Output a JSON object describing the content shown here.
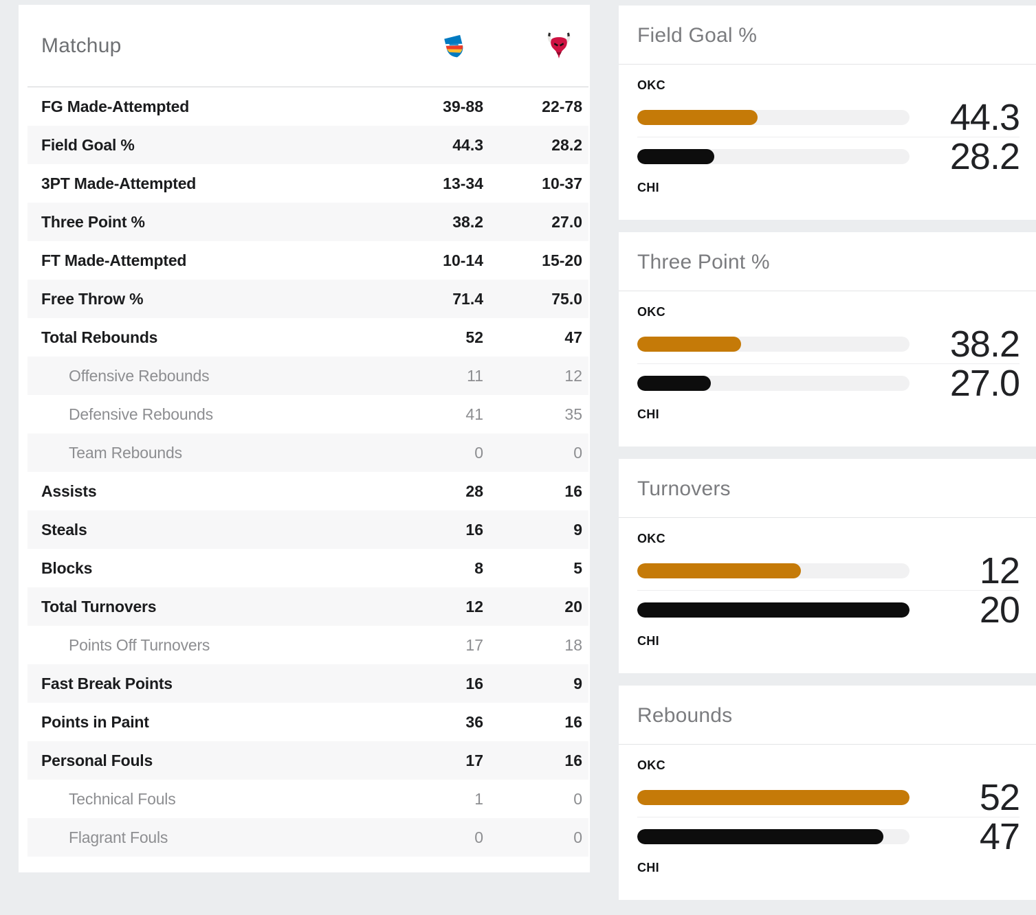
{
  "teams": {
    "away_abbr": "OKC",
    "home_abbr": "CHI",
    "away_logo_icon": "okc-thunder-logo",
    "home_logo_icon": "chicago-bulls-logo"
  },
  "matchup": {
    "title": "Matchup",
    "rows": [
      {
        "label": "FG Made-Attempted",
        "okc": "39-88",
        "chi": "22-78",
        "sub": false
      },
      {
        "label": "Field Goal %",
        "okc": "44.3",
        "chi": "28.2",
        "sub": false
      },
      {
        "label": "3PT Made-Attempted",
        "okc": "13-34",
        "chi": "10-37",
        "sub": false
      },
      {
        "label": "Three Point %",
        "okc": "38.2",
        "chi": "27.0",
        "sub": false
      },
      {
        "label": "FT Made-Attempted",
        "okc": "10-14",
        "chi": "15-20",
        "sub": false
      },
      {
        "label": "Free Throw %",
        "okc": "71.4",
        "chi": "75.0",
        "sub": false
      },
      {
        "label": "Total Rebounds",
        "okc": "52",
        "chi": "47",
        "sub": false
      },
      {
        "label": "Offensive Rebounds",
        "okc": "11",
        "chi": "12",
        "sub": true
      },
      {
        "label": "Defensive Rebounds",
        "okc": "41",
        "chi": "35",
        "sub": true
      },
      {
        "label": "Team Rebounds",
        "okc": "0",
        "chi": "0",
        "sub": true
      },
      {
        "label": "Assists",
        "okc": "28",
        "chi": "16",
        "sub": false
      },
      {
        "label": "Steals",
        "okc": "16",
        "chi": "9",
        "sub": false
      },
      {
        "label": "Blocks",
        "okc": "8",
        "chi": "5",
        "sub": false
      },
      {
        "label": "Total Turnovers",
        "okc": "12",
        "chi": "20",
        "sub": false
      },
      {
        "label": "Points Off Turnovers",
        "okc": "17",
        "chi": "18",
        "sub": true
      },
      {
        "label": "Fast Break Points",
        "okc": "16",
        "chi": "9",
        "sub": false
      },
      {
        "label": "Points in Paint",
        "okc": "36",
        "chi": "16",
        "sub": false
      },
      {
        "label": "Personal Fouls",
        "okc": "17",
        "chi": "16",
        "sub": false
      },
      {
        "label": "Technical Fouls",
        "okc": "1",
        "chi": "0",
        "sub": true
      },
      {
        "label": "Flagrant Fouls",
        "okc": "0",
        "chi": "0",
        "sub": true
      }
    ]
  },
  "panels": [
    {
      "type": "bar",
      "title": "Field Goal %",
      "away_value": "44.3",
      "home_value": "28.2",
      "away_fill_pct": 44.3,
      "home_fill_pct": 28.2
    },
    {
      "type": "bar",
      "title": "Three Point %",
      "away_value": "38.2",
      "home_value": "27.0",
      "away_fill_pct": 38.2,
      "home_fill_pct": 27.0
    },
    {
      "type": "bar",
      "title": "Turnovers",
      "away_value": "12",
      "home_value": "20",
      "away_fill_pct": 60,
      "home_fill_pct": 100
    },
    {
      "type": "bar",
      "title": "Rebounds",
      "away_value": "52",
      "home_value": "47",
      "away_fill_pct": 100,
      "home_fill_pct": 90.4
    }
  ],
  "colors": {
    "away_bar": "#c57a08",
    "home_bar": "#0d0d0d",
    "bar_track": "#f1f1f2",
    "page_bg": "#ebedef",
    "row_alt_bg": "#f7f7f8",
    "thunder_blue": "#007ac1",
    "thunder_orange": "#ef3b24",
    "thunder_yellow": "#fdbb30",
    "bulls_red": "#ce1141"
  }
}
